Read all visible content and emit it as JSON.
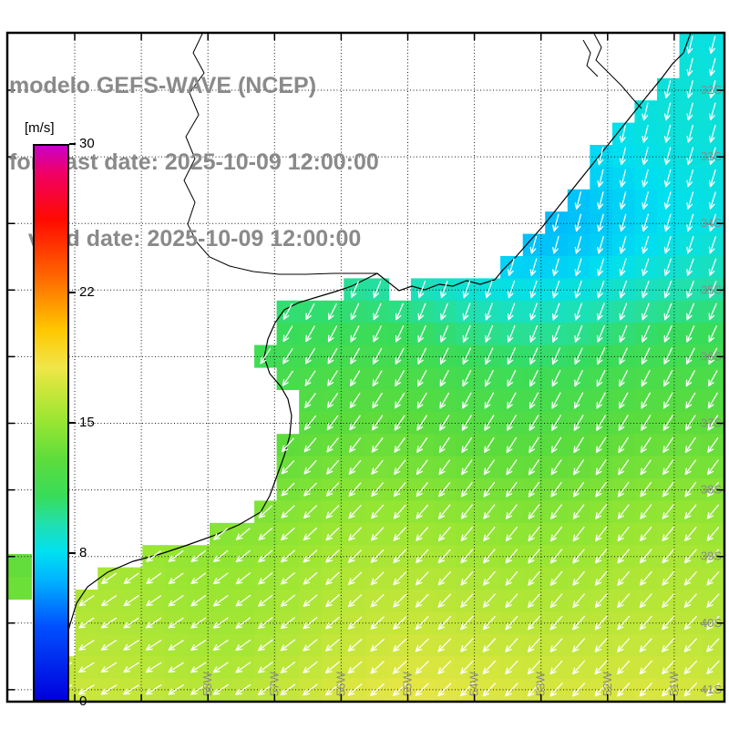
{
  "header": {
    "line1": "modelo GEFS-WAVE (NCEP)",
    "line2": "forecast date: 2025-10-09 12:00:00",
    "line3": "   valid date: 2025-10-09 12:00:00",
    "text_color": "#8a8a8a"
  },
  "colorbar": {
    "unit": "[m/s]",
    "ticks": [
      "30",
      "22",
      "15",
      "8",
      "0"
    ],
    "tick_values": [
      30,
      22,
      15,
      8,
      0
    ],
    "min": 0,
    "max": 30,
    "stops": [
      {
        "v": 0,
        "c": "#0000dc"
      },
      {
        "v": 4,
        "c": "#0050ff"
      },
      {
        "v": 6.5,
        "c": "#00b4ff"
      },
      {
        "v": 8,
        "c": "#00e0f0"
      },
      {
        "v": 9.5,
        "c": "#20e0b0"
      },
      {
        "v": 11,
        "c": "#38dc5a"
      },
      {
        "v": 13,
        "c": "#5cdc3c"
      },
      {
        "v": 15,
        "c": "#96e632"
      },
      {
        "v": 17,
        "c": "#d2e63c"
      },
      {
        "v": 18,
        "c": "#f0e64a"
      },
      {
        "v": 20,
        "c": "#ffc800"
      },
      {
        "v": 23,
        "c": "#ff6400"
      },
      {
        "v": 26,
        "c": "#ff0a00"
      },
      {
        "v": 28.5,
        "c": "#f00064"
      },
      {
        "v": 30,
        "c": "#c800c8"
      }
    ]
  },
  "map": {
    "lat_labels": [
      "32S",
      "33S",
      "34S",
      "35S",
      "36S",
      "37S",
      "38S",
      "39S",
      "40S",
      "41S"
    ],
    "lon_labels": [
      "58W",
      "57W",
      "56W",
      "55W",
      "54W",
      "53W",
      "52W",
      "51W"
    ],
    "label_color": "#8a8a8a",
    "arrow_color": "#ffffff",
    "land_color": "#ffffff",
    "grid_color": "#1a1a1a",
    "coast_color": "#000000",
    "border_color": "#000000"
  }
}
